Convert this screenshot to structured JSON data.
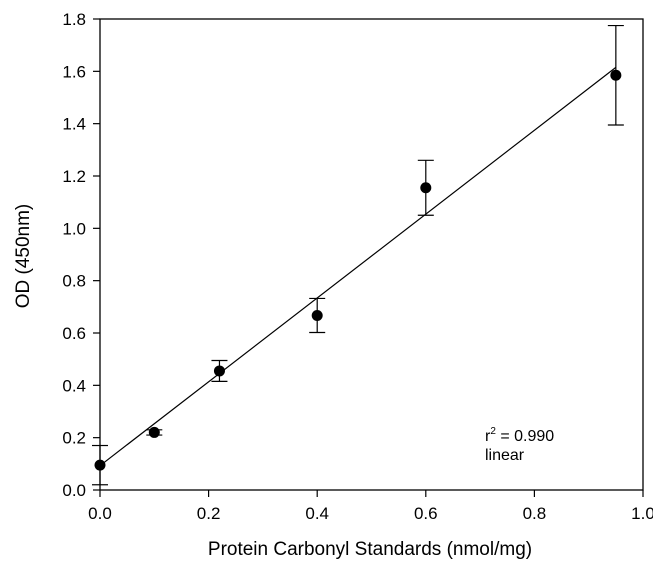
{
  "chart_data": {
    "type": "scatter",
    "title": "",
    "xlabel": "Protein Carbonyl Standards (nmol/mg)",
    "ylabel": "OD (450nm)",
    "xlim": [
      0.0,
      1.0
    ],
    "ylim": [
      0.0,
      1.8
    ],
    "x_ticks": [
      "0.0",
      "0.2",
      "0.4",
      "0.6",
      "0.8",
      "1.0"
    ],
    "y_ticks": [
      "0.0",
      "0.2",
      "0.4",
      "0.6",
      "0.8",
      "1.0",
      "1.2",
      "1.4",
      "1.6",
      "1.8"
    ],
    "grid": false,
    "series": [
      {
        "points": [
          {
            "x": 0.0,
            "y": 0.095,
            "err_low": 0.075,
            "err_high": 0.075
          },
          {
            "x": 0.1,
            "y": 0.22,
            "err_low": 0.01,
            "err_high": 0.01
          },
          {
            "x": 0.22,
            "y": 0.455,
            "err_low": 0.04,
            "err_high": 0.04
          },
          {
            "x": 0.4,
            "y": 0.667,
            "err_low": 0.065,
            "err_high": 0.065
          },
          {
            "x": 0.6,
            "y": 1.155,
            "err_low": 0.105,
            "err_high": 0.105
          },
          {
            "x": 0.95,
            "y": 1.585,
            "err_low": 0.19,
            "err_high": 0.19
          }
        ]
      }
    ],
    "fit_line": {
      "type": "linear",
      "x": [
        0.0,
        0.95
      ],
      "y": [
        0.093,
        1.615
      ]
    },
    "annotation": {
      "r_label": "r",
      "superscript": "2",
      "r_value_text": " = 0.990",
      "fit_label": "linear"
    }
  }
}
